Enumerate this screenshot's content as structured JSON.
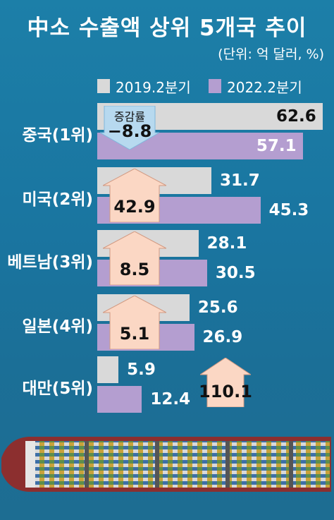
{
  "title": "中소 수출액 상위 5개국 추이",
  "unit_note": "(단위: 억 달러, %)",
  "legend": [
    {
      "label": "2019.2분기",
      "color": "#d9d9d9"
    },
    {
      "label": "2022.2분기",
      "color": "#b49ed0"
    }
  ],
  "growth_label": "증감률",
  "chart_data": {
    "type": "bar",
    "orientation": "horizontal",
    "categories": [
      "중국(1위)",
      "미국(2위)",
      "베트남(3위)",
      "일본(4위)",
      "대만(5위)"
    ],
    "series": [
      {
        "name": "2019.2분기",
        "values": [
          62.6,
          31.7,
          28.1,
          25.6,
          5.9
        ]
      },
      {
        "name": "2022.2분기",
        "values": [
          57.1,
          45.3,
          30.5,
          26.9,
          12.4
        ]
      }
    ],
    "growth_rate": [
      {
        "value": "−8.8",
        "direction": "down"
      },
      {
        "value": "42.9",
        "direction": "up"
      },
      {
        "value": "8.5",
        "direction": "up"
      },
      {
        "value": "5.1",
        "direction": "up"
      },
      {
        "value": "110.1",
        "direction": "up"
      }
    ],
    "value_labels_2019": [
      "62.6",
      "31.7",
      "28.1",
      "25.6",
      "5.9"
    ],
    "value_labels_2022": [
      "57.1",
      "45.3",
      "30.5",
      "26.9",
      "12.4"
    ],
    "xlim": [
      0,
      62.6
    ],
    "legend_position": "top",
    "grid": false
  },
  "colors": {
    "bar_2019": "#d9d9d9",
    "bar_2022": "#b49ed0",
    "arrow_up": "#fbd7c4",
    "arrow_down": "#b7d9ef"
  }
}
